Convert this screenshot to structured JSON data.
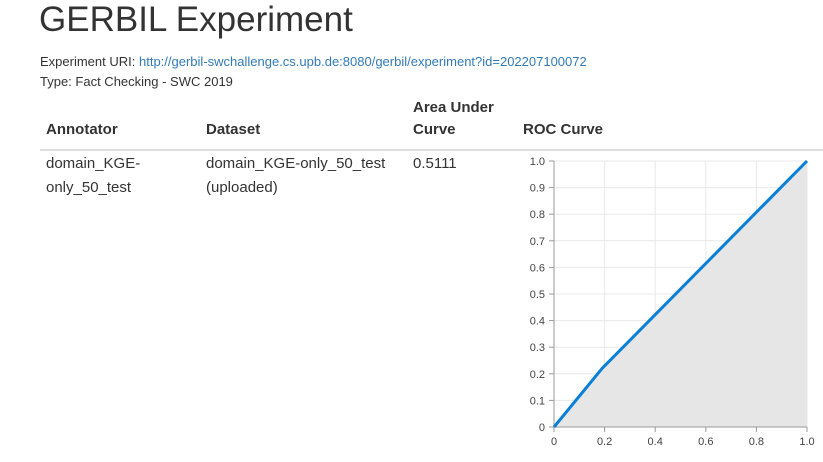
{
  "page": {
    "title": "GERBIL Experiment",
    "uri_label": "Experiment URI:",
    "uri_value": "http://gerbil-swchallenge.cs.upb.de:8080/gerbil/experiment?id=202207100072",
    "type_text": "Type: Fact Checking - SWC 2019"
  },
  "table": {
    "headers": {
      "annotator": "Annotator",
      "dataset": "Dataset",
      "auc_line1": "Area Under",
      "auc_line2": "Curve",
      "roc": "ROC Curve"
    },
    "row": {
      "annotator_line1": "domain_KGE-",
      "annotator_line2": "only_50_test",
      "dataset_line1": "domain_KGE-only_50_test",
      "dataset_line2": "(uploaded)",
      "auc": "0.5111"
    }
  },
  "chart_data": {
    "type": "area",
    "x": [
      0,
      0.19,
      1.0
    ],
    "y": [
      0,
      0.22,
      1.0
    ],
    "xlim": [
      0,
      1.0
    ],
    "ylim": [
      0,
      1.0
    ],
    "xticks": [
      "0",
      "0.2",
      "0.4",
      "0.6",
      "0.8",
      "1.0"
    ],
    "yticks": [
      "0",
      "0.1",
      "0.2",
      "0.3",
      "0.4",
      "0.5",
      "0.6",
      "0.7",
      "0.8",
      "0.9",
      "1.0"
    ],
    "grid": true,
    "line_color": "#0a7fd6",
    "fill_color": "#e6e6e6"
  }
}
